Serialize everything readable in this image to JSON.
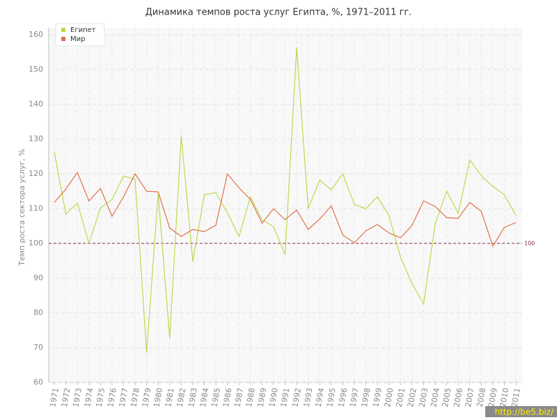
{
  "chart_data": {
    "type": "line",
    "title": "Динамика темпов роста услуг Египта, %, 1971–2011 гг.",
    "y_label": "Темп роста сектора услуг, %",
    "categories": [
      "1971",
      "1972",
      "1973",
      "1974",
      "1975",
      "1976",
      "1977",
      "1978",
      "1979",
      "1980",
      "1981",
      "1982",
      "1983",
      "1984",
      "1985",
      "1986",
      "1987",
      "1988",
      "1989",
      "1990",
      "1991",
      "1992",
      "1993",
      "1994",
      "1995",
      "1996",
      "1997",
      "1998",
      "1999",
      "2000",
      "2001",
      "2002",
      "2003",
      "2004",
      "2005",
      "2006",
      "2007",
      "2008",
      "2009",
      "2010",
      "2011"
    ],
    "series": [
      {
        "name": "Египет",
        "color": "#bcd94c",
        "values": [
          126.4,
          108.4,
          111.6,
          100,
          110.2,
          112.6,
          119.4,
          118.4,
          68.6,
          114.4,
          72.6,
          131,
          94.8,
          114,
          114.6,
          108.8,
          102,
          113.4,
          106.8,
          104.8,
          96.8,
          156.4,
          110,
          118.2,
          115.4,
          120,
          111.2,
          110,
          113.4,
          108,
          96,
          88.4,
          82.6,
          105.6,
          115,
          108.6,
          124,
          119.4,
          116.4,
          114,
          108
        ]
      },
      {
        "name": "Мир",
        "color": "#e07048",
        "values": [
          111.8,
          115.6,
          120.4,
          112.2,
          115.8,
          107.8,
          113.4,
          120,
          115,
          114.8,
          104.4,
          102,
          104,
          103.4,
          105.2,
          120,
          116,
          112.6,
          105.8,
          110,
          106.8,
          109.6,
          104,
          107,
          110.8,
          102.4,
          100.2,
          103.6,
          105.4,
          103,
          101.6,
          105.2,
          112.2,
          110.6,
          107.4,
          107.2,
          111.8,
          109.2,
          99.2,
          104.6,
          106
        ]
      }
    ],
    "ylim": [
      60,
      160
    ],
    "yticks": [
      60,
      70,
      80,
      90,
      100,
      110,
      120,
      130,
      140,
      150,
      160
    ],
    "grid": true,
    "reference_line": {
      "value": 100,
      "color": "#8b2244"
    },
    "legend": "top-left",
    "watermark": "http://be5.biz/"
  }
}
